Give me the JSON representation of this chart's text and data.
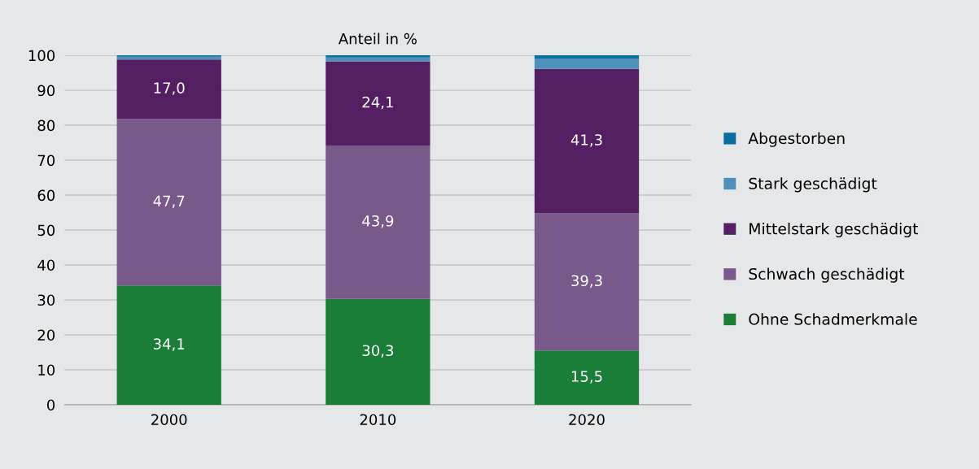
{
  "chart_data": {
    "type": "bar",
    "title": "Anteil in %",
    "categories": [
      "2000",
      "2010",
      "2020"
    ],
    "stacked": true,
    "series": [
      {
        "name": "Ohne Schadmerkmale",
        "color": "#1b7e38",
        "values": [
          34.1,
          30.3,
          15.5
        ],
        "value_labels": [
          "34,1",
          "30,3",
          "15,5"
        ]
      },
      {
        "name": "Schwach geschädigt",
        "color": "#79588a",
        "values": [
          47.7,
          43.9,
          39.3
        ],
        "value_labels": [
          "47,7",
          "43,9",
          "39,3"
        ]
      },
      {
        "name": "Mittelstark geschädigt",
        "color": "#541e62",
        "values": [
          17.0,
          24.1,
          41.3
        ],
        "value_labels": [
          "17,0",
          "24,1",
          "41,3"
        ]
      },
      {
        "name": "Stark geschädigt",
        "color": "#4f90ba",
        "values": [
          0.8,
          1.1,
          2.9
        ]
      },
      {
        "name": "Abgestorben",
        "color": "#0a6fa0",
        "values": [
          0.4,
          0.6,
          1.0
        ]
      }
    ],
    "ylim": [
      0,
      100
    ],
    "yticks": [
      0,
      10,
      20,
      30,
      40,
      50,
      60,
      70,
      80,
      90,
      100
    ],
    "grid": "y",
    "legend": "right"
  }
}
